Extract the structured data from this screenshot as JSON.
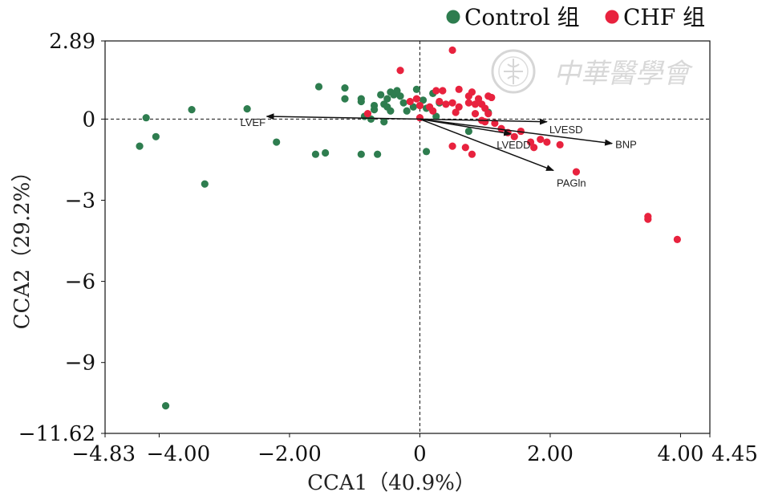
{
  "chart_data": {
    "type": "scatter",
    "xlabel": "CCA1（40.9%）",
    "ylabel": "CCA2（29.2%）",
    "xlim": [
      -4.83,
      4.45
    ],
    "ylim": [
      -11.62,
      2.89
    ],
    "x_ticks": [
      {
        "value": -4.83,
        "label": "−4.83"
      },
      {
        "value": -4.0,
        "label": "−4.00"
      },
      {
        "value": -2.0,
        "label": "−2.00"
      },
      {
        "value": 0,
        "label": "0"
      },
      {
        "value": 2.0,
        "label": "2.00"
      },
      {
        "value": 4.0,
        "label": "4.00"
      },
      {
        "value": 4.45,
        "label": "4.45"
      }
    ],
    "y_ticks": [
      {
        "value": 2.89,
        "label": "2.89"
      },
      {
        "value": 0,
        "label": "0"
      },
      {
        "value": -3,
        "label": "−3"
      },
      {
        "value": -6,
        "label": "−6"
      },
      {
        "value": -9,
        "label": "−9"
      },
      {
        "value": -11.62,
        "label": "−11.62"
      }
    ],
    "grid": false,
    "reference_lines": "dashed lines at x=0 and y=0",
    "legend_position": "top-right",
    "series": [
      {
        "name": "Control 组",
        "color": "#2e7d4f",
        "points": [
          [
            -4.3,
            -1.0
          ],
          [
            -4.2,
            0.05
          ],
          [
            -4.05,
            -0.65
          ],
          [
            -3.5,
            0.35
          ],
          [
            -3.3,
            -2.4
          ],
          [
            -2.65,
            0.38
          ],
          [
            -2.2,
            -0.85
          ],
          [
            -3.9,
            -10.6
          ],
          [
            -1.55,
            1.2
          ],
          [
            -1.15,
            1.15
          ],
          [
            -1.15,
            0.75
          ],
          [
            -0.9,
            0.75
          ],
          [
            -0.9,
            0.65
          ],
          [
            -0.7,
            0.5
          ],
          [
            -0.7,
            0.35
          ],
          [
            -0.55,
            0.55
          ],
          [
            -0.5,
            0.75
          ],
          [
            -0.45,
            1.0
          ],
          [
            -0.4,
            0.9
          ],
          [
            -0.35,
            1.05
          ],
          [
            -0.3,
            0.85
          ],
          [
            -0.25,
            0.6
          ],
          [
            -0.6,
            0.9
          ],
          [
            -0.5,
            0.45
          ],
          [
            -0.45,
            0.3
          ],
          [
            -0.2,
            0.3
          ],
          [
            -0.1,
            0.45
          ],
          [
            -0.05,
            1.1
          ],
          [
            0.05,
            0.7
          ],
          [
            0.1,
            0.4
          ],
          [
            0.2,
            0.95
          ],
          [
            0.25,
            0.1
          ],
          [
            0.3,
            0.6
          ],
          [
            -0.85,
            0.1
          ],
          [
            -0.75,
            0.0
          ],
          [
            -0.55,
            -0.1
          ],
          [
            -1.6,
            -1.3
          ],
          [
            -1.45,
            -1.25
          ],
          [
            -0.9,
            -1.3
          ],
          [
            -0.65,
            -1.3
          ],
          [
            0.1,
            -1.2
          ],
          [
            0.75,
            -0.45
          ],
          [
            1.05,
            0.25
          ]
        ]
      },
      {
        "name": "CHF 组",
        "color": "#e8223e",
        "points": [
          [
            0.5,
            2.55
          ],
          [
            -0.3,
            1.8
          ],
          [
            0.25,
            1.05
          ],
          [
            0.35,
            1.05
          ],
          [
            0.6,
            1.1
          ],
          [
            0.75,
            0.85
          ],
          [
            0.8,
            1.0
          ],
          [
            0.9,
            0.75
          ],
          [
            1.05,
            0.85
          ],
          [
            1.1,
            0.8
          ],
          [
            0.3,
            0.65
          ],
          [
            0.4,
            0.55
          ],
          [
            0.5,
            0.6
          ],
          [
            0.6,
            0.45
          ],
          [
            0.75,
            0.6
          ],
          [
            0.85,
            0.55
          ],
          [
            0.95,
            0.55
          ],
          [
            1.0,
            0.4
          ],
          [
            1.05,
            0.2
          ],
          [
            -0.15,
            0.65
          ],
          [
            -0.05,
            0.75
          ],
          [
            0.0,
            0.5
          ],
          [
            0.15,
            0.45
          ],
          [
            0.2,
            0.3
          ],
          [
            0.55,
            0.25
          ],
          [
            0.85,
            0.2
          ],
          [
            0.95,
            -0.05
          ],
          [
            1.0,
            -0.1
          ],
          [
            1.15,
            -0.15
          ],
          [
            1.25,
            -0.35
          ],
          [
            1.35,
            -0.5
          ],
          [
            1.45,
            -0.65
          ],
          [
            1.55,
            -0.45
          ],
          [
            1.7,
            -0.85
          ],
          [
            1.75,
            -1.05
          ],
          [
            1.85,
            -0.75
          ],
          [
            1.95,
            -0.85
          ],
          [
            2.15,
            -0.95
          ],
          [
            0.5,
            -1.0
          ],
          [
            0.7,
            -1.05
          ],
          [
            0.8,
            -1.3
          ],
          [
            -0.8,
            0.2
          ],
          [
            0.0,
            0.05
          ],
          [
            2.4,
            -1.95
          ],
          [
            3.5,
            -3.6
          ],
          [
            3.5,
            -3.7
          ],
          [
            3.95,
            -4.45
          ]
        ]
      }
    ],
    "vectors": [
      {
        "name": "LVEF",
        "x": -2.35,
        "y": 0.1
      },
      {
        "name": "LVESD",
        "x": 1.95,
        "y": -0.1
      },
      {
        "name": "LVEDD",
        "x": 1.4,
        "y": -0.55
      },
      {
        "name": "BNP",
        "x": 2.95,
        "y": -0.9
      },
      {
        "name": "PAGln",
        "x": 2.05,
        "y": -1.9
      }
    ]
  },
  "watermark": {
    "text": "中華醫學會",
    "logo_icon": "cma-seal-icon"
  }
}
